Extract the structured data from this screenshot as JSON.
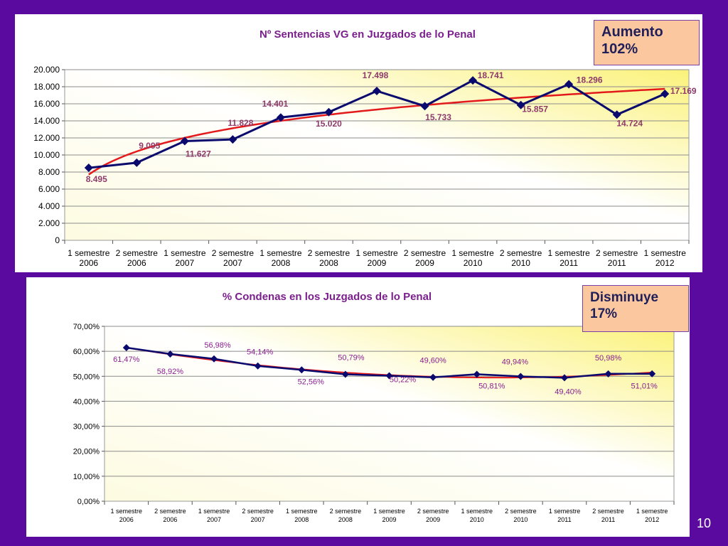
{
  "chart_data": [
    {
      "type": "line",
      "title": "Nº Sentencias VG en Juzgados de lo Penal",
      "categories": [
        [
          "1 semestre",
          "2006"
        ],
        [
          "2 semestre",
          "2006"
        ],
        [
          "1 semestre",
          "2007"
        ],
        [
          "2 semestre",
          "2007"
        ],
        [
          "1 semestre",
          "2008"
        ],
        [
          "2 semestre",
          "2008"
        ],
        [
          "1 semestre",
          "2009"
        ],
        [
          "2 semestre",
          "2009"
        ],
        [
          "1 semestre",
          "2010"
        ],
        [
          "2 semestre",
          "2010"
        ],
        [
          "1 semestre",
          "2011"
        ],
        [
          "2 semestre",
          "2011"
        ],
        [
          "1 semestre",
          "2012"
        ]
      ],
      "series": [
        {
          "values": [
            8495,
            9095,
            11627,
            11828,
            14401,
            15020,
            17498,
            15733,
            18741,
            15857,
            18296,
            14724,
            17169
          ],
          "labels": [
            "8.495",
            "9.095",
            "11.627",
            "11.828",
            "14.401",
            "15.020",
            "17.498",
            "15.733",
            "18.741",
            "15.857",
            "18.296",
            "14.724",
            "17.169"
          ],
          "color": "#0a0a6e"
        }
      ],
      "trendline": {
        "type": "logarithmic",
        "color": "#e31a1c"
      },
      "ylim": [
        0,
        20000
      ],
      "yticks": [
        "0",
        "2.000",
        "4.000",
        "6.000",
        "8.000",
        "10.000",
        "12.000",
        "14.000",
        "16.000",
        "18.000",
        "20.000"
      ],
      "grid": true,
      "callout": {
        "line1": "Aumento",
        "line2": "102%"
      }
    },
    {
      "type": "line",
      "title": "% Condenas en los Juzgados de lo Penal",
      "categories": [
        [
          "1 semestre",
          "2006"
        ],
        [
          "2 semestre",
          "2006"
        ],
        [
          "1 semestre",
          "2007"
        ],
        [
          "2 semestre",
          "2007"
        ],
        [
          "1 semestre",
          "2008"
        ],
        [
          "2 semestre",
          "2008"
        ],
        [
          "1 semestre",
          "2009"
        ],
        [
          "2 semestre",
          "2009"
        ],
        [
          "1 semestre",
          "2010"
        ],
        [
          "2 semestre",
          "2010"
        ],
        [
          "1 semestre",
          "2011"
        ],
        [
          "2 semestre",
          "2011"
        ],
        [
          "1 semestre",
          "2012"
        ]
      ],
      "series": [
        {
          "values": [
            61.47,
            58.92,
            56.98,
            54.14,
            52.56,
            50.79,
            50.22,
            49.6,
            50.81,
            49.94,
            49.4,
            50.98,
            51.01
          ],
          "labels": [
            "61,47%",
            "58,92%",
            "56,98%",
            "54,14%",
            "52,56%",
            "50,79%",
            "50,22%",
            "49,60%",
            "50,81%",
            "49,94%",
            "49,40%",
            "50,98%",
            "51,01%"
          ],
          "color": "#0a0a6e"
        }
      ],
      "trendline": {
        "type": "polynomial",
        "color": "#e31a1c"
      },
      "ylim": [
        0,
        70
      ],
      "yticks": [
        "0,00%",
        "10,00%",
        "20,00%",
        "30,00%",
        "40,00%",
        "50,00%",
        "60,00%",
        "70,00%"
      ],
      "grid": true,
      "callout": {
        "line1": "Disminuye",
        "line2": "17%"
      }
    }
  ],
  "page_number": "10"
}
